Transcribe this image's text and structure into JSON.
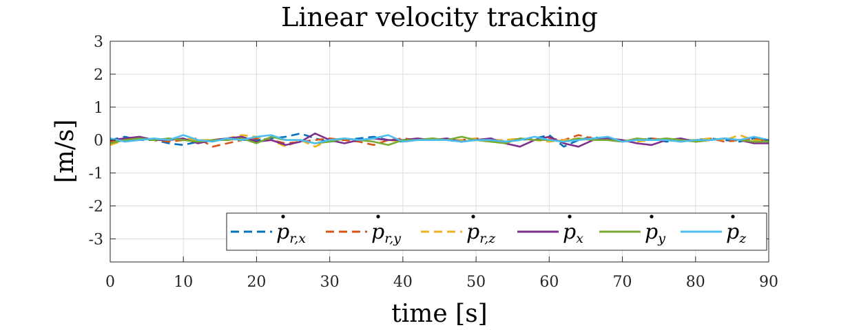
{
  "chart_data": {
    "type": "line",
    "title": "Linear velocity tracking",
    "xlabel": "time [s]",
    "ylabel": "[m/s]",
    "xlim": [
      0,
      90
    ],
    "ylim": [
      -3.7,
      3
    ],
    "xticks": [
      "0",
      "10",
      "20",
      "30",
      "40",
      "50",
      "60",
      "70",
      "80",
      "90"
    ],
    "yticks": [
      "3",
      "2",
      "1",
      "0",
      "-1",
      "-2",
      "-3"
    ],
    "grid": true,
    "legend_position": "bottom-right",
    "x": [
      0,
      2,
      4,
      6,
      8,
      10,
      12,
      14,
      16,
      18,
      20,
      22,
      24,
      26,
      28,
      30,
      32,
      34,
      36,
      38,
      40,
      42,
      44,
      46,
      48,
      50,
      52,
      54,
      56,
      58,
      60,
      62,
      64,
      66,
      68,
      70,
      72,
      74,
      76,
      78,
      80,
      82,
      84,
      86,
      88,
      90
    ],
    "series": [
      {
        "name": "p_{r,x}",
        "base": "p",
        "sub": "r,x",
        "color": "#0072BD",
        "dash": "dashed",
        "values": [
          0.0,
          0.1,
          0.0,
          0.0,
          -0.1,
          -0.15,
          -0.05,
          0.0,
          0.05,
          0.0,
          0.0,
          0.05,
          0.1,
          0.2,
          0.05,
          -0.05,
          0.0,
          0.05,
          0.1,
          0.0,
          -0.05,
          0.0,
          0.05,
          0.0,
          -0.05,
          0.0,
          0.05,
          -0.05,
          0.0,
          0.05,
          0.15,
          -0.2,
          0.0,
          0.1,
          0.0,
          -0.05,
          0.0,
          0.05,
          -0.05,
          0.0,
          0.0,
          0.05,
          0.0,
          -0.05,
          0.05,
          0.0
        ]
      },
      {
        "name": "p_{r,y}",
        "base": "p",
        "sub": "r,y",
        "color": "#D95319",
        "dash": "dashed",
        "values": [
          -0.05,
          0.0,
          0.05,
          0.0,
          -0.05,
          0.0,
          0.05,
          -0.2,
          -0.1,
          0.0,
          0.05,
          0.0,
          -0.1,
          -0.05,
          0.0,
          0.05,
          0.0,
          -0.05,
          -0.15,
          0.0,
          0.05,
          0.0,
          0.05,
          0.0,
          0.0,
          0.05,
          0.0,
          -0.05,
          0.05,
          0.0,
          0.05,
          0.0,
          0.15,
          0.05,
          0.0,
          -0.05,
          0.0,
          0.05,
          0.0,
          -0.05,
          0.0,
          0.05,
          -0.05,
          0.0,
          0.05,
          -0.05
        ]
      },
      {
        "name": "p_{r,z}",
        "base": "p",
        "sub": "r,z",
        "color": "#EDB120",
        "dash": "dashed",
        "values": [
          -0.15,
          0.0,
          0.05,
          0.0,
          0.0,
          0.05,
          0.0,
          0.0,
          0.05,
          0.15,
          0.1,
          0.0,
          -0.2,
          0.0,
          -0.2,
          0.0,
          0.05,
          0.0,
          0.05,
          0.0,
          -0.05,
          0.0,
          0.05,
          0.0,
          0.0,
          0.05,
          0.0,
          0.0,
          0.05,
          0.0,
          -0.05,
          0.0,
          0.05,
          0.0,
          0.05,
          0.0,
          -0.05,
          0.0,
          0.05,
          0.0,
          0.0,
          0.05,
          0.0,
          0.15,
          0.0,
          -0.05
        ]
      },
      {
        "name": "p_x",
        "base": "p",
        "sub": "x",
        "color": "#7E2F8E",
        "dash": "solid",
        "values": [
          0.0,
          0.05,
          0.1,
          0.0,
          0.0,
          0.05,
          -0.1,
          0.0,
          0.05,
          0.1,
          -0.05,
          0.0,
          -0.15,
          -0.05,
          0.2,
          0.0,
          -0.1,
          0.0,
          0.05,
          0.0,
          0.0,
          0.05,
          0.0,
          0.05,
          -0.05,
          0.0,
          0.05,
          -0.1,
          -0.2,
          0.0,
          0.1,
          -0.1,
          -0.2,
          0.0,
          0.05,
          0.0,
          -0.1,
          -0.15,
          0.0,
          0.05,
          -0.05,
          0.0,
          0.05,
          0.0,
          -0.1,
          -0.1
        ]
      },
      {
        "name": "p_y",
        "base": "p",
        "sub": "y",
        "color": "#77AC30",
        "dash": "solid",
        "values": [
          -0.1,
          0.0,
          0.05,
          0.0,
          0.05,
          0.0,
          -0.05,
          0.0,
          0.0,
          0.05,
          -0.1,
          0.1,
          0.0,
          0.0,
          -0.1,
          -0.05,
          0.05,
          0.0,
          -0.05,
          -0.15,
          0.0,
          0.0,
          0.05,
          0.0,
          0.1,
          0.0,
          -0.05,
          -0.1,
          0.05,
          0.0,
          0.0,
          -0.05,
          0.05,
          0.0,
          0.0,
          -0.05,
          0.05,
          0.0,
          0.05,
          0.0,
          -0.05,
          0.0,
          0.05,
          0.0,
          -0.05,
          -0.05
        ]
      },
      {
        "name": "p_z",
        "base": "p",
        "sub": "z",
        "color": "#4DBEEE",
        "dash": "solid",
        "values": [
          0.05,
          -0.05,
          0.0,
          0.05,
          0.0,
          0.15,
          0.0,
          -0.05,
          0.05,
          0.0,
          0.1,
          0.15,
          0.0,
          0.0,
          -0.1,
          0.0,
          0.05,
          0.0,
          0.05,
          0.15,
          -0.05,
          0.0,
          0.0,
          0.0,
          -0.05,
          0.0,
          0.0,
          -0.05,
          0.0,
          0.1,
          0.0,
          -0.05,
          0.0,
          0.05,
          0.1,
          -0.05,
          0.0,
          0.0,
          0.0,
          -0.05,
          0.0,
          0.0,
          0.05,
          0.0,
          0.1,
          0.0
        ]
      }
    ]
  }
}
